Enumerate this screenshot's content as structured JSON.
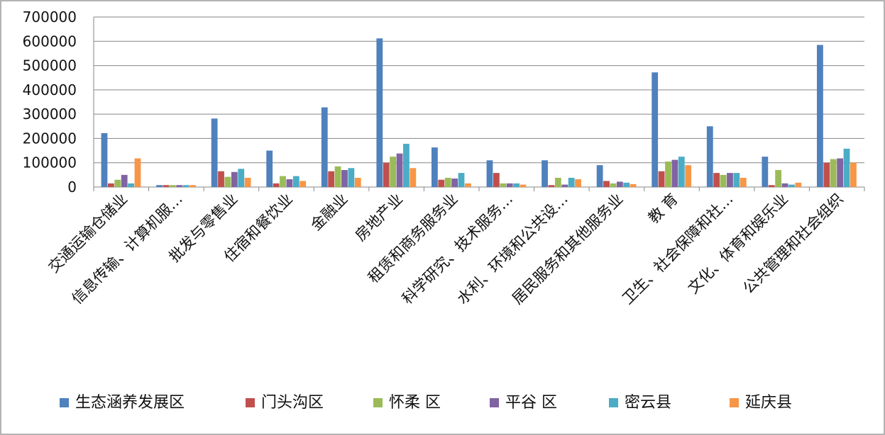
{
  "chart_data": {
    "type": "bar",
    "title": "",
    "xlabel": "",
    "ylabel": "",
    "ylim": [
      0,
      700000
    ],
    "yticks": [
      0,
      100000,
      200000,
      300000,
      400000,
      500000,
      600000,
      700000
    ],
    "ytick_labels": [
      "0",
      "100000",
      "200000",
      "300000",
      "400000",
      "500000",
      "600000",
      "700000"
    ],
    "grid": "horizontal",
    "legend_position": "bottom",
    "categories": [
      "交通运输仓储业",
      "信息传输、计算机服…",
      "批发与零售业",
      "住宿和餐饮业",
      "金融业",
      "房地产业",
      "租赁和商务服务业",
      "科学研究、技术服务…",
      "水利、环境和公共设…",
      "居民服务和其他服务业",
      "教 育",
      "卫生、社会保障和社…",
      "文化、体育和娱乐业",
      "公共管理和社会组织"
    ],
    "series": [
      {
        "name": "生态涵养发展区",
        "color": "#4F81BD",
        "values": [
          222000,
          8000,
          282000,
          150000,
          328000,
          612000,
          163000,
          110000,
          110000,
          90000,
          472000,
          250000,
          125000,
          585000
        ]
      },
      {
        "name": "门头沟区",
        "color": "#C0504D",
        "values": [
          15000,
          8000,
          65000,
          15000,
          65000,
          100000,
          30000,
          58000,
          8000,
          25000,
          65000,
          58000,
          8000,
          100000
        ]
      },
      {
        "name": "怀柔 区",
        "color": "#9BBB59",
        "values": [
          30000,
          8000,
          42000,
          45000,
          85000,
          125000,
          38000,
          15000,
          38000,
          15000,
          105000,
          50000,
          70000,
          115000
        ]
      },
      {
        "name": "平谷 区",
        "color": "#8064A2",
        "values": [
          50000,
          8000,
          62000,
          32000,
          70000,
          138000,
          35000,
          15000,
          10000,
          22000,
          112000,
          58000,
          15000,
          118000
        ]
      },
      {
        "name": "密云县",
        "color": "#4BACC6",
        "values": [
          15000,
          8000,
          75000,
          45000,
          78000,
          178000,
          58000,
          15000,
          38000,
          18000,
          125000,
          58000,
          10000,
          158000
        ]
      },
      {
        "name": "延庆县",
        "color": "#F79646",
        "values": [
          118000,
          8000,
          38000,
          25000,
          38000,
          78000,
          15000,
          10000,
          32000,
          12000,
          90000,
          38000,
          18000,
          100000
        ]
      }
    ]
  }
}
